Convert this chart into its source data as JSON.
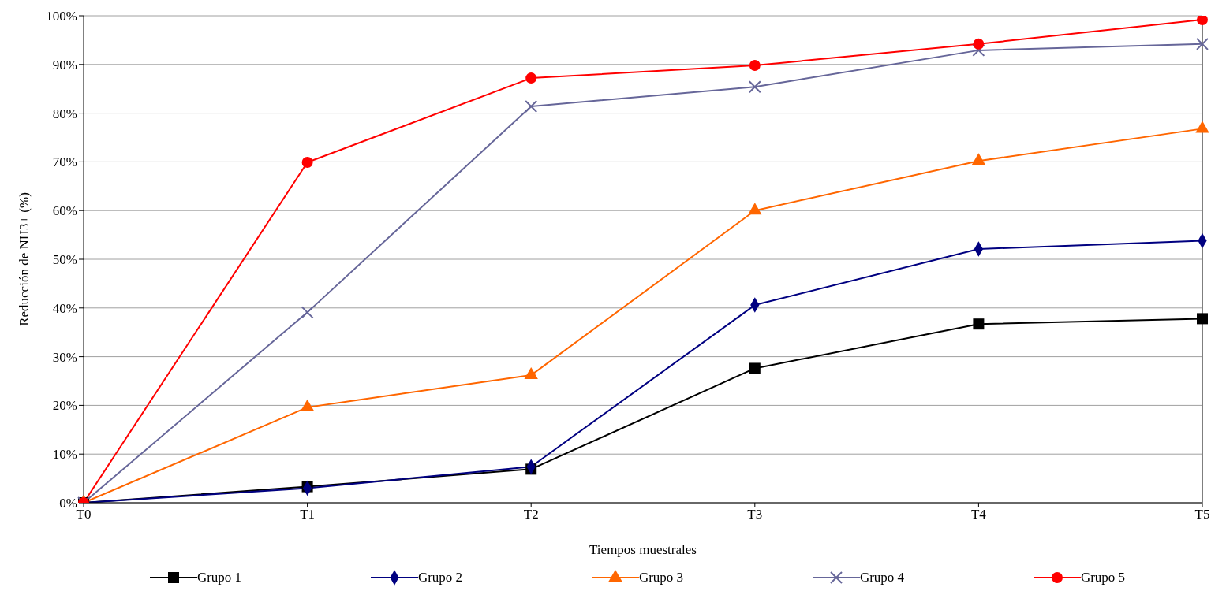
{
  "chart_data": {
    "type": "line",
    "xlabel": "Tiempos muestrales",
    "ylabel": "Reducción de NH3+ (%)",
    "categories": [
      "T0",
      "T1",
      "T2",
      "T3",
      "T4",
      "T5"
    ],
    "series": [
      {
        "name": "Grupo 1",
        "color": "#000000",
        "marker": "square",
        "values": [
          0,
          3.3,
          6.9,
          27.6,
          36.7,
          37.8
        ]
      },
      {
        "name": "Grupo 2",
        "color": "#000080",
        "marker": "diamond",
        "values": [
          0,
          3.0,
          7.4,
          40.6,
          52.1,
          53.8
        ]
      },
      {
        "name": "Grupo 3",
        "color": "#ff6600",
        "marker": "triangle",
        "values": [
          0,
          19.6,
          26.2,
          60.0,
          70.2,
          76.8
        ]
      },
      {
        "name": "Grupo 4",
        "color": "#666699",
        "marker": "cross",
        "values": [
          0,
          39.1,
          81.4,
          85.4,
          92.9,
          94.2
        ]
      },
      {
        "name": "Grupo 5",
        "color": "#ff0000",
        "marker": "circle",
        "values": [
          0,
          69.9,
          87.2,
          89.8,
          94.2,
          99.2
        ]
      }
    ],
    "ylim": [
      0,
      100
    ],
    "yticks": [
      {
        "value": 0,
        "label": "0%"
      },
      {
        "value": 10,
        "label": "10%"
      },
      {
        "value": 20,
        "label": "20%"
      },
      {
        "value": 30,
        "label": "30%"
      },
      {
        "value": 40,
        "label": "40%"
      },
      {
        "value": 50,
        "label": "50%"
      },
      {
        "value": 60,
        "label": "60%"
      },
      {
        "value": 70,
        "label": "70%"
      },
      {
        "value": 80,
        "label": "80%"
      },
      {
        "value": 90,
        "label": "90%"
      },
      {
        "value": 100,
        "label": "100%"
      }
    ],
    "grid": "y",
    "legend": "bottom",
    "line_style": "solid"
  }
}
